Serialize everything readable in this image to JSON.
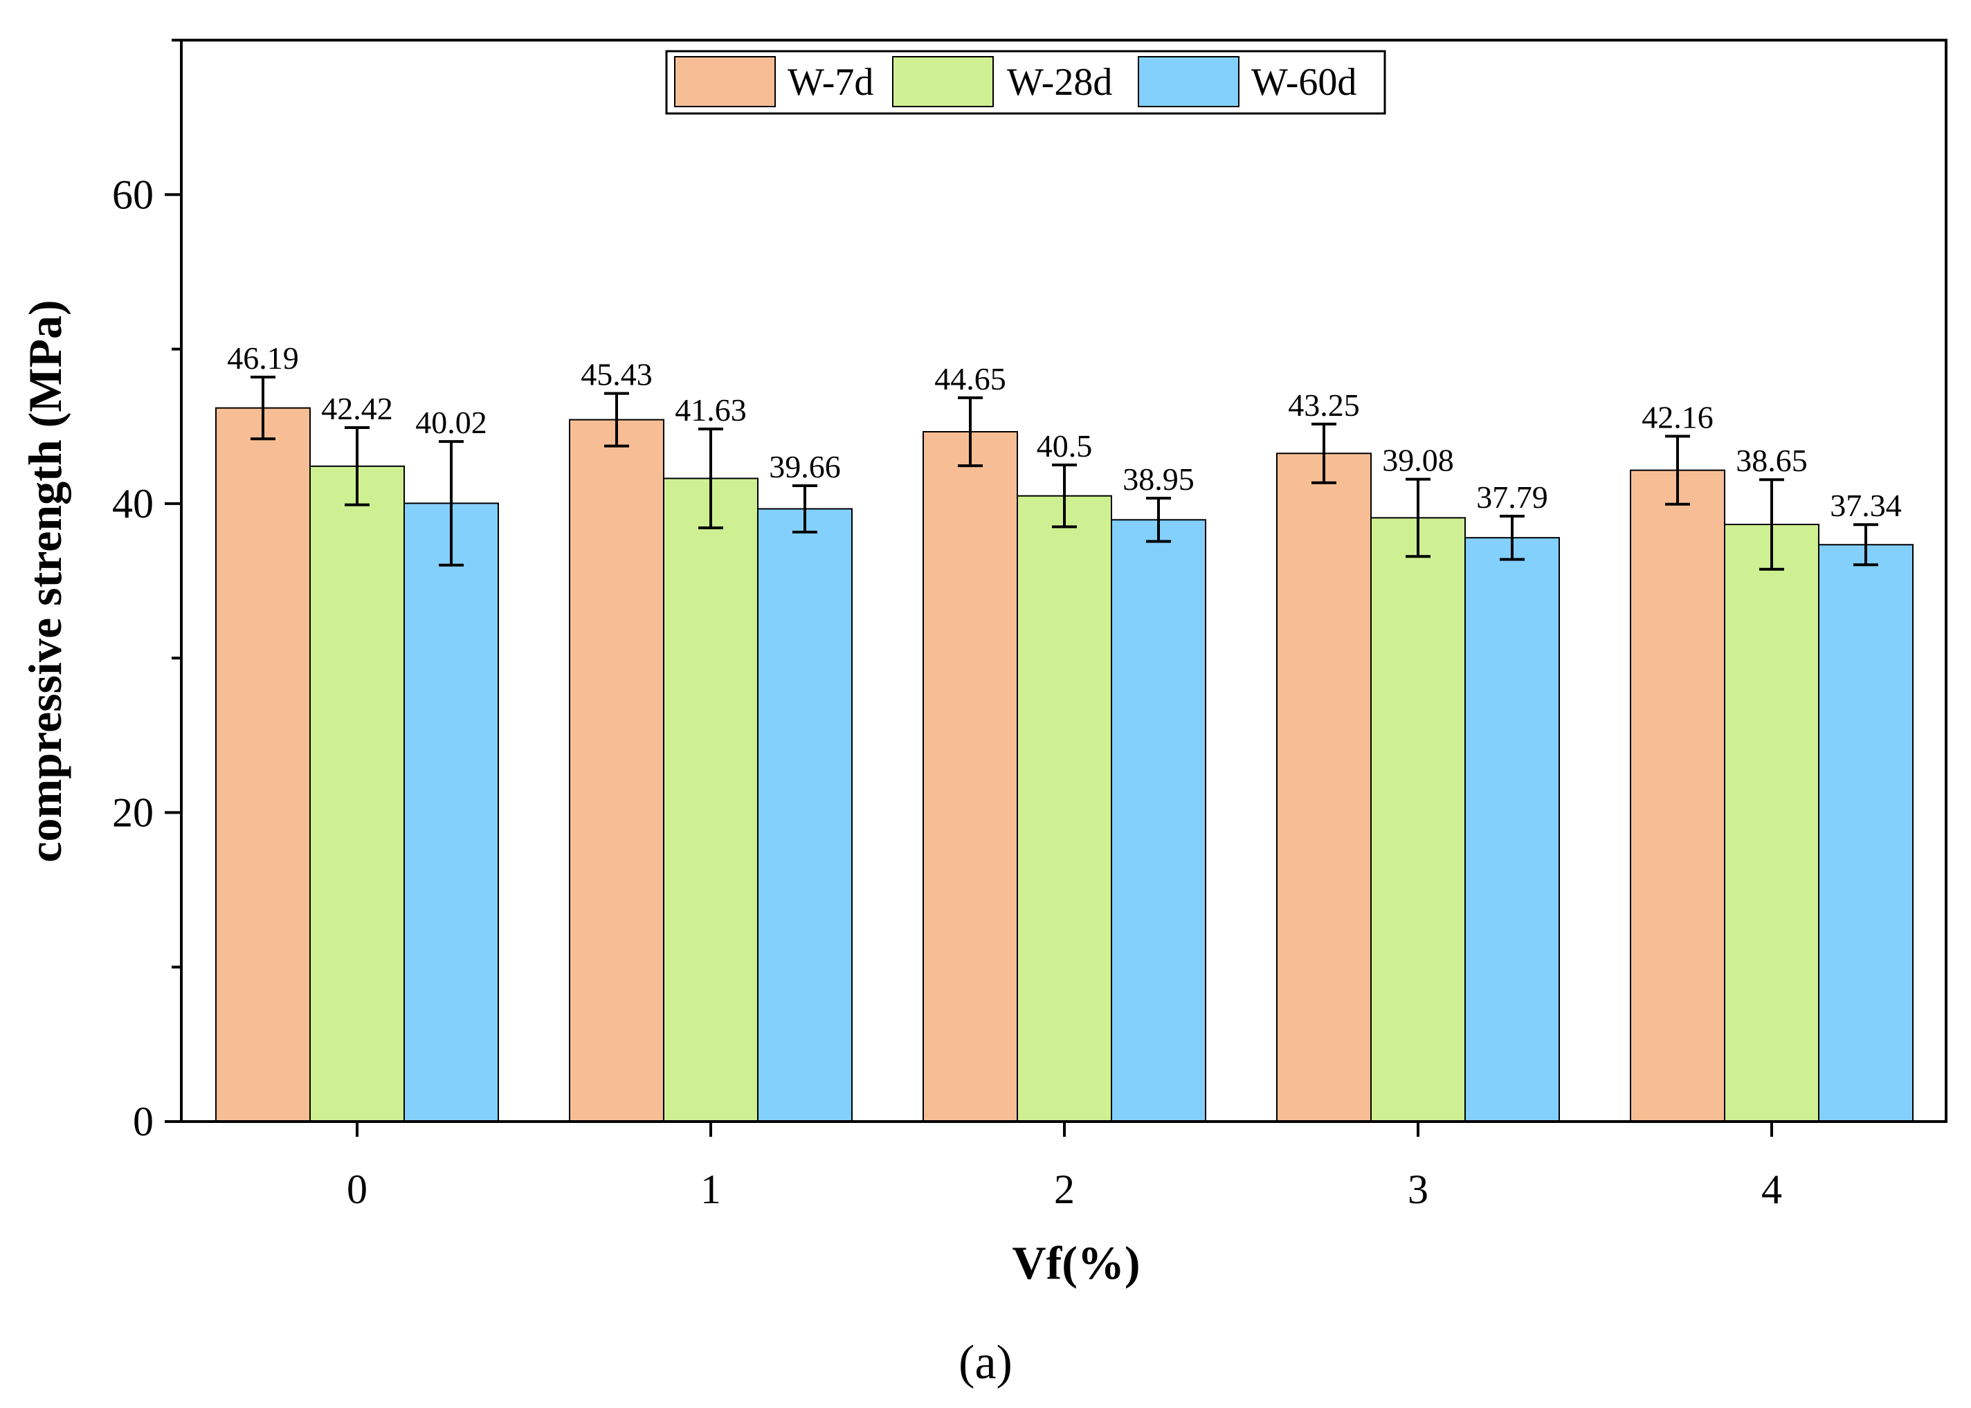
{
  "chart_data": {
    "type": "bar",
    "title": "",
    "xlabel": "Vf(%)",
    "ylabel": "compressive strength (MPa)",
    "categories": [
      "0",
      "1",
      "2",
      "3",
      "4"
    ],
    "ylim": [
      0,
      70
    ],
    "yticks": [
      0,
      20,
      40,
      60
    ],
    "grid": false,
    "legend_position": "top-center",
    "series": [
      {
        "name": "W-7d",
        "color": "#F7BE95",
        "values": [
          46.19,
          45.43,
          44.65,
          43.25,
          42.16
        ],
        "labels": [
          "46.19",
          "45.43",
          "44.65",
          "43.25",
          "42.16"
        ],
        "errors": [
          2.0,
          1.7,
          2.2,
          1.9,
          2.2
        ]
      },
      {
        "name": "W-28d",
        "color": "#CFF092",
        "values": [
          42.42,
          41.63,
          40.5,
          39.08,
          38.65
        ],
        "labels": [
          "42.42",
          "41.63",
          "40.5",
          "39.08",
          "38.65"
        ],
        "errors": [
          2.5,
          3.2,
          2.0,
          2.5,
          2.9
        ]
      },
      {
        "name": "W-60d",
        "color": "#83D0FD",
        "values": [
          40.02,
          39.66,
          38.95,
          37.79,
          37.34
        ],
        "labels": [
          "40.02",
          "39.66",
          "38.95",
          "37.79",
          "37.34"
        ],
        "errors": [
          4.0,
          1.5,
          1.4,
          1.4,
          1.3
        ]
      }
    ]
  },
  "caption": {
    "text": "(a)"
  }
}
